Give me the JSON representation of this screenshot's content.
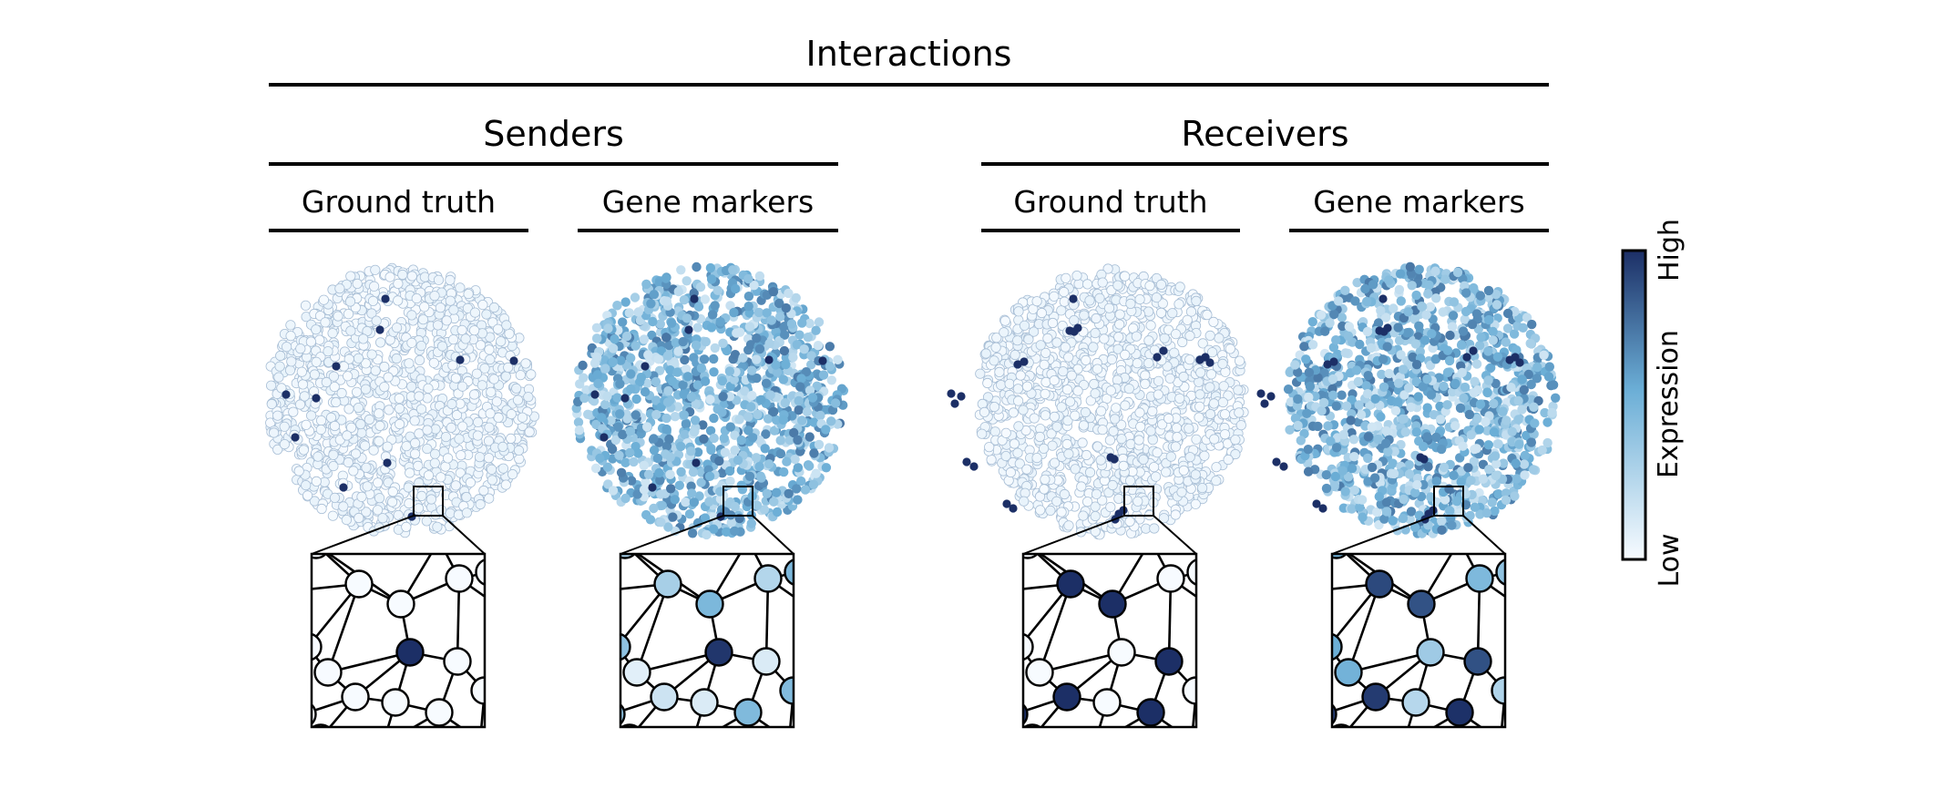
{
  "titles": {
    "main": "Interactions",
    "senders": "Senders",
    "receivers": "Receivers",
    "panels": [
      "Ground truth",
      "Gene markers",
      "Ground truth",
      "Gene markers"
    ]
  },
  "colorbar": {
    "label": "Expression",
    "high": "High",
    "low": "Low",
    "color_low": "#f7fbff",
    "color_mid": "#6baed6",
    "color_high": "#1c2f66"
  },
  "panels": [
    {
      "group": "senders",
      "kind": "ground_truth",
      "background_level": 0.05,
      "hotspot_level": 1.0,
      "hotspots": "isolated cells"
    },
    {
      "group": "senders",
      "kind": "gene_markers",
      "background_level": 0.45,
      "hotspot_level": 1.0,
      "hotspots": "isolated cells"
    },
    {
      "group": "receivers",
      "kind": "ground_truth",
      "background_level": 0.05,
      "hotspot_level": 1.0,
      "hotspots": "cell clusters"
    },
    {
      "group": "receivers",
      "kind": "gene_markers",
      "background_level": 0.45,
      "hotspot_level": 1.0,
      "hotspots": "cell clusters"
    }
  ]
}
